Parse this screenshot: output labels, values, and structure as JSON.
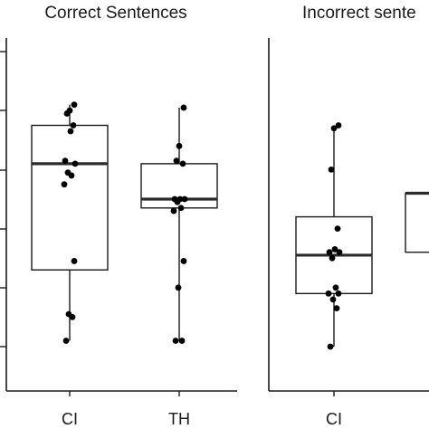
{
  "chart_data": [
    {
      "type": "box",
      "title": "Correct Sentences",
      "categories": [
        "CI",
        "TH"
      ],
      "boxes": [
        {
          "category": "CI",
          "min": 0.02,
          "q1": 0.26,
          "median": 0.62,
          "q3": 0.75,
          "max": 0.82,
          "points": [
            0.02,
            0.1,
            0.11,
            0.29,
            0.55,
            0.58,
            0.59,
            0.62,
            0.63,
            0.73,
            0.75,
            0.79,
            0.8,
            0.82
          ]
        },
        {
          "category": "TH",
          "min": 0.02,
          "q1": 0.47,
          "median": 0.5,
          "q3": 0.62,
          "max": 0.81,
          "points": [
            0.02,
            0.02,
            0.2,
            0.29,
            0.46,
            0.47,
            0.49,
            0.5,
            0.5,
            0.5,
            0.62,
            0.63,
            0.68,
            0.81
          ]
        }
      ]
    },
    {
      "type": "box",
      "title": "Incorrect sente",
      "categories": [
        "CI",
        "CI"
      ],
      "boxes": [
        {
          "category": "CI",
          "min": 0.0,
          "q1": 0.18,
          "median": 0.31,
          "q3": 0.44,
          "max": 0.75,
          "points": [
            0.0,
            0.13,
            0.16,
            0.18,
            0.18,
            0.2,
            0.3,
            0.32,
            0.32,
            0.33,
            0.4,
            0.6,
            0.74,
            0.75
          ]
        },
        {
          "category": "CI",
          "min": null,
          "q1": 0.32,
          "median": 0.52,
          "q3": 0.52,
          "max": null,
          "points": []
        }
      ]
    }
  ],
  "colors": {
    "box_fill": "#ffffff",
    "stroke": "#1a1a1a",
    "point": "#000000",
    "median": "#2b2b2b"
  }
}
